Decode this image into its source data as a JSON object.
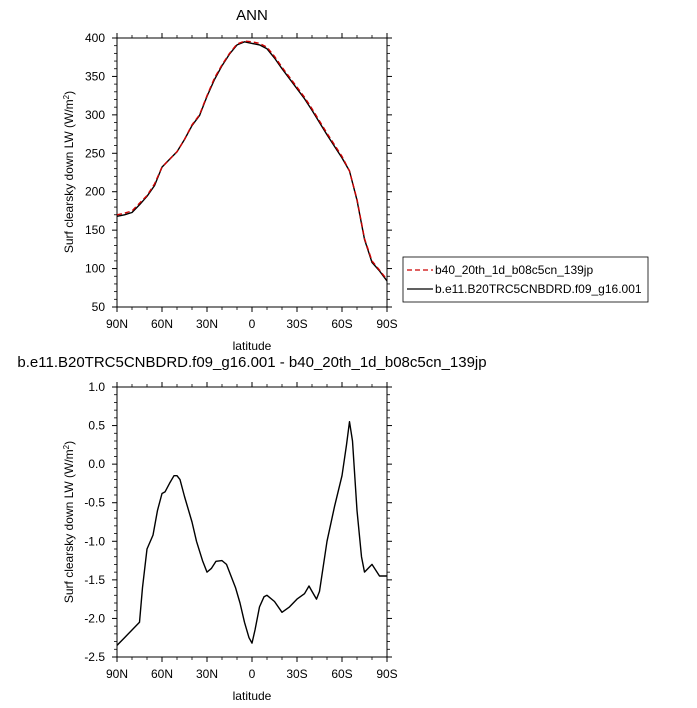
{
  "chart_data": [
    {
      "type": "line",
      "title": "ANN",
      "xlabel": "latitude",
      "ylabel": "Surf clearsky down LW (W/m²)",
      "xlim": [
        90,
        -90
      ],
      "ylim": [
        50,
        400
      ],
      "xticks": [
        90,
        60,
        30,
        0,
        -30,
        -60,
        -90
      ],
      "xtick_labels": [
        "90N",
        "60N",
        "30N",
        "0",
        "30S",
        "60S",
        "90S"
      ],
      "yticks": [
        50,
        100,
        150,
        200,
        250,
        300,
        350,
        400
      ],
      "ytick_labels": [
        "50",
        "100",
        "150",
        "200",
        "250",
        "300",
        "350",
        "400"
      ],
      "legend_position": "right",
      "series": [
        {
          "name": "b40_20th_1d_b08c5cn_139jp",
          "color": "#cc0000",
          "style": "dashed",
          "x": [
            90,
            85,
            80,
            75,
            70,
            65,
            60,
            55,
            50,
            45,
            40,
            35,
            30,
            25,
            20,
            15,
            10,
            5,
            0,
            -5,
            -10,
            -15,
            -20,
            -25,
            -30,
            -35,
            -40,
            -45,
            -50,
            -55,
            -60,
            -65,
            -70,
            -75,
            -80,
            -85,
            -90
          ],
          "y": [
            170,
            172,
            175,
            185,
            195,
            210,
            232,
            242,
            252,
            268,
            287,
            300,
            325,
            348,
            365,
            380,
            392,
            396,
            395,
            393,
            388,
            376,
            362,
            349,
            336,
            323,
            308,
            292,
            276,
            261,
            246,
            227,
            190,
            139,
            110,
            98,
            85.5
          ]
        },
        {
          "name": "b.e11.B20TRC5CNBDRD.f09_g16.001",
          "color": "#000000",
          "style": "solid",
          "x": [
            90,
            85,
            80,
            75,
            70,
            65,
            60,
            55,
            50,
            45,
            40,
            35,
            30,
            25,
            20,
            15,
            10,
            5,
            0,
            -5,
            -10,
            -15,
            -20,
            -25,
            -30,
            -35,
            -40,
            -45,
            -50,
            -55,
            -60,
            -65,
            -70,
            -75,
            -80,
            -85,
            -90
          ],
          "y": [
            168,
            170,
            173,
            183,
            194,
            208,
            232,
            242,
            252,
            268,
            286,
            299,
            324,
            346,
            364,
            379,
            391,
            395,
            393,
            391,
            386,
            374,
            360,
            347,
            334,
            321,
            306,
            290,
            274,
            259,
            244,
            227,
            189,
            138,
            108,
            97,
            84
          ]
        }
      ]
    },
    {
      "type": "line",
      "title": "b.e11.B20TRC5CNBDRD.f09_g16.001 - b40_20th_1d_b08c5cn_139jp",
      "xlabel": "latitude",
      "ylabel": "Surf clearsky down LW (W/m²)",
      "xlim": [
        90,
        -90
      ],
      "ylim": [
        -2.5,
        1.0
      ],
      "xticks": [
        90,
        60,
        30,
        0,
        -30,
        -60,
        -90
      ],
      "xtick_labels": [
        "90N",
        "60N",
        "30N",
        "0",
        "30S",
        "60S",
        "90S"
      ],
      "yticks": [
        -2.5,
        -2.0,
        -1.5,
        -1.0,
        -0.5,
        0.0,
        0.5,
        1.0
      ],
      "ytick_labels": [
        "-2.5",
        "-2.0",
        "-1.5",
        "-1.0",
        "-0.5",
        "0.0",
        "0.5",
        "1.0"
      ],
      "series": [
        {
          "color": "#000000",
          "style": "solid",
          "x": [
            90,
            85,
            80,
            75,
            73,
            70,
            66,
            63,
            60,
            58,
            55,
            52,
            50,
            48,
            45,
            40,
            37,
            33,
            30,
            27,
            24,
            20,
            17,
            14,
            11,
            8,
            5,
            2,
            0,
            -2,
            -5,
            -8,
            -10,
            -15,
            -20,
            -25,
            -30,
            -35,
            -38,
            -40,
            -43,
            -45,
            -50,
            -55,
            -60,
            -63,
            -65,
            -67,
            -70,
            -73,
            -75,
            -80,
            -85,
            -90
          ],
          "y": [
            -2.35,
            -2.25,
            -2.15,
            -2.05,
            -1.6,
            -1.1,
            -0.92,
            -0.6,
            -0.38,
            -0.36,
            -0.25,
            -0.15,
            -0.15,
            -0.2,
            -0.42,
            -0.75,
            -1.0,
            -1.25,
            -1.4,
            -1.35,
            -1.26,
            -1.25,
            -1.3,
            -1.45,
            -1.6,
            -1.8,
            -2.05,
            -2.25,
            -2.32,
            -2.15,
            -1.85,
            -1.72,
            -1.7,
            -1.78,
            -1.92,
            -1.85,
            -1.75,
            -1.68,
            -1.58,
            -1.65,
            -1.75,
            -1.65,
            -1.0,
            -0.55,
            -0.15,
            0.25,
            0.55,
            0.3,
            -0.6,
            -1.2,
            -1.4,
            -1.3,
            -1.45,
            -1.45
          ]
        }
      ]
    }
  ]
}
